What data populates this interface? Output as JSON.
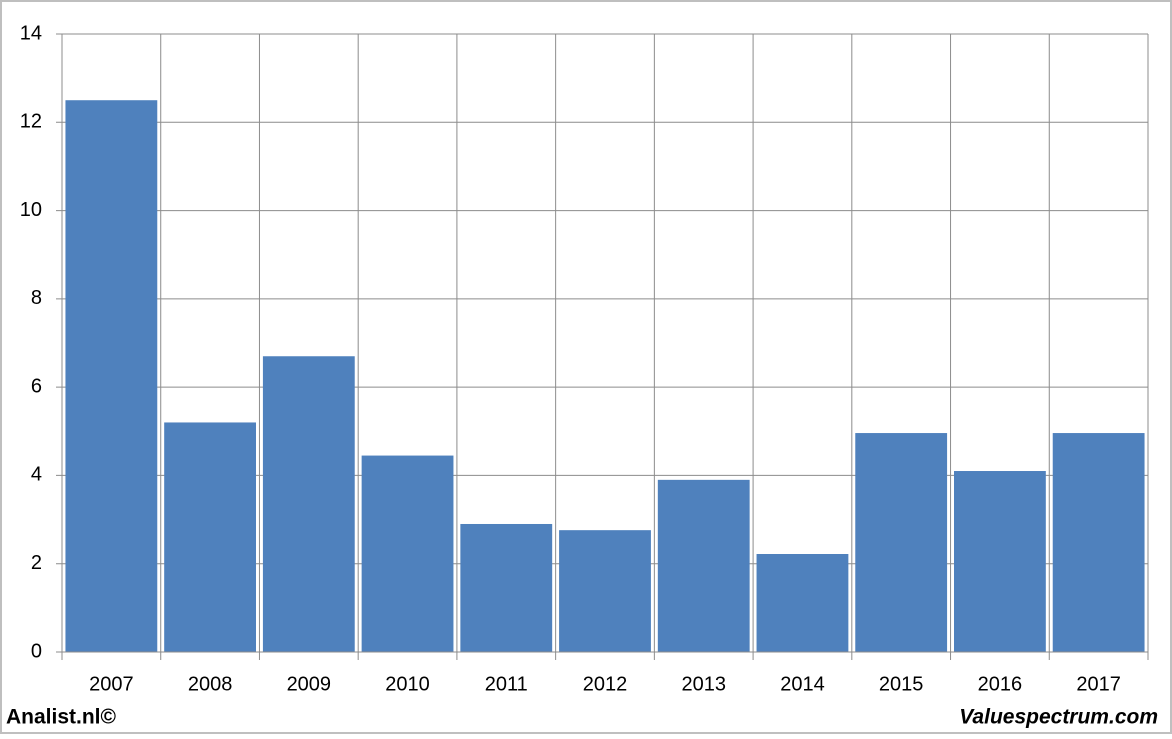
{
  "chart_data": {
    "type": "bar",
    "categories": [
      "2007",
      "2008",
      "2009",
      "2010",
      "2011",
      "2012",
      "2013",
      "2014",
      "2015",
      "2016",
      "2017"
    ],
    "values": [
      12.5,
      5.2,
      6.7,
      4.45,
      2.9,
      2.76,
      3.9,
      2.22,
      4.96,
      4.1,
      4.96
    ],
    "color": "#4f81bd",
    "ylim": [
      0,
      14
    ],
    "yticks": [
      0,
      2,
      4,
      6,
      8,
      10,
      12,
      14
    ],
    "grid": true,
    "xgrid": true,
    "annotations": [
      "Analist.nl©",
      "Valuespectrum.com"
    ]
  }
}
